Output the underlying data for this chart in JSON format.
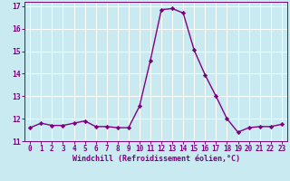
{
  "x": [
    0,
    1,
    2,
    3,
    4,
    5,
    6,
    7,
    8,
    9,
    10,
    11,
    12,
    13,
    14,
    15,
    16,
    17,
    18,
    19,
    20,
    21,
    22,
    23
  ],
  "y": [
    11.6,
    11.8,
    11.7,
    11.7,
    11.8,
    11.9,
    11.65,
    11.65,
    11.6,
    11.6,
    12.55,
    14.6,
    16.85,
    16.9,
    16.7,
    15.05,
    13.95,
    13.0,
    12.0,
    11.4,
    11.6,
    11.65,
    11.65,
    11.75
  ],
  "line_color": "#800080",
  "marker": "D",
  "marker_size": 2.2,
  "bg_color": "#c8eaf0",
  "grid_color": "#ffffff",
  "xlabel": "Windchill (Refroidissement éolien,°C)",
  "xlabel_color": "#800080",
  "tick_color": "#800080",
  "ylim": [
    11,
    17.2
  ],
  "xlim": [
    -0.5,
    23.5
  ],
  "yticks": [
    11,
    12,
    13,
    14,
    15,
    16,
    17
  ],
  "xticks": [
    0,
    1,
    2,
    3,
    4,
    5,
    6,
    7,
    8,
    9,
    10,
    11,
    12,
    13,
    14,
    15,
    16,
    17,
    18,
    19,
    20,
    21,
    22,
    23
  ],
  "line_width": 1.0,
  "tick_fontsize": 5.5,
  "xlabel_fontsize": 6.0
}
